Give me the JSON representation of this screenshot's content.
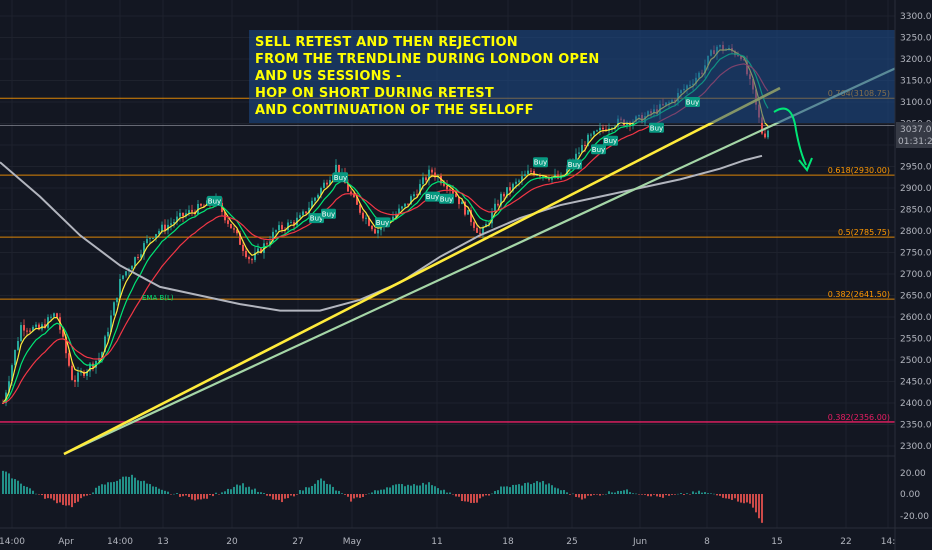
{
  "chart_data": {
    "type": "candlestick",
    "annotation": [
      "SELL RETEST AND THEN REJECTION",
      "FROM THE TRENDLINE DURING LONDON OPEN",
      "AND US SESSIONS -",
      "HOP ON SHORT DURING RETEST",
      "AND CONTINUATION OF THE SELLOFF"
    ],
    "ylim": [
      2290,
      3320
    ],
    "price_ticks": [
      "3300.00",
      "3250.00",
      "3200.00",
      "3150.00",
      "3100.00",
      "3050.00",
      "3000.00",
      "2950.00",
      "2900.00",
      "2850.00",
      "2800.00",
      "2750.00",
      "2700.00",
      "2650.00",
      "2600.00",
      "2550.00",
      "2500.00",
      "2450.00",
      "2400.00",
      "2350.00",
      "2300.00"
    ],
    "x_ticks": [
      "14:00",
      "Apr",
      "14:00",
      "13",
      "20",
      "27",
      "May",
      "11",
      "18",
      "25",
      "Jun",
      "8",
      "15",
      "22",
      "14:"
    ],
    "osc_ticks": [
      "20.00",
      "0.00",
      "-20.00"
    ],
    "last_price": "3037.00",
    "countdown": "01:31:27",
    "fib_levels": [
      {
        "label": "0.764(3108.75)",
        "value": 3108.75
      },
      {
        "label": "0.618(2930.00)",
        "value": 2930.0
      },
      {
        "label": "0.5(2785.75)",
        "value": 2785.75
      },
      {
        "label": "0.382(2641.50)",
        "value": 2641.5
      },
      {
        "label": "0.382(2356.00)",
        "value": 2356.0
      }
    ],
    "ema_label": "EMA B(L)",
    "buy_label": "Buy",
    "colors": {
      "background": "#131722",
      "grid": "#1e222d",
      "fib": "#ff9800",
      "fib_low": "#e91e63",
      "trendline_yellow": "#ffeb3b",
      "trendline_green": "#a5d6a7",
      "candle_up": "#26a69a",
      "candle_down": "#ef5350",
      "ema_fast": "#ffeb3b",
      "ema_mid": "#00e676",
      "ema_slow": "#f23645",
      "ma_long": "#b2b5be",
      "box": "#1e4d8c",
      "annotation_text": "#ffff00",
      "last_price_box": "#363a45"
    }
  }
}
